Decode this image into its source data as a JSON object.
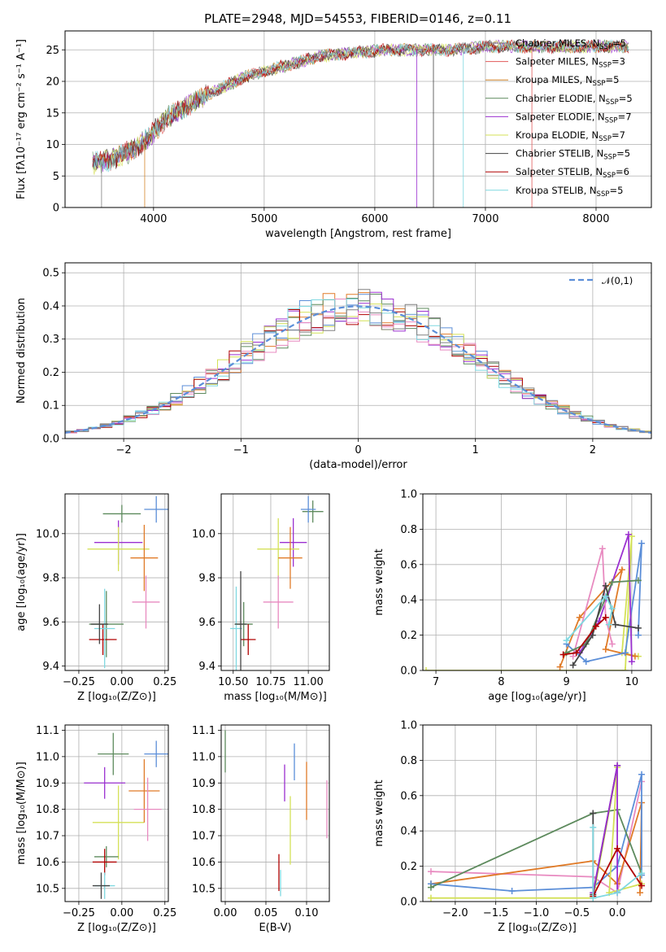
{
  "figure_title": "PLATE=2948, MJD=54553, FIBERID=0146, z=0.11",
  "legend": [
    {
      "label": "Chabrier MILES, N",
      "sub": "SSP",
      "value": "=5",
      "color": "#808080"
    },
    {
      "label": "Salpeter MILES, N",
      "sub": "SSP",
      "value": "=3",
      "color": "#e15a5a"
    },
    {
      "label": "Kroupa MILES, N",
      "sub": "SSP",
      "value": "=5",
      "color": "#d4862a"
    },
    {
      "label": "Chabrier ELODIE, N",
      "sub": "SSP",
      "value": "=5",
      "color": "#5d8a5d"
    },
    {
      "label": "Salpeter ELODIE, N",
      "sub": "SSP",
      "value": "=7",
      "color": "#9b30d0"
    },
    {
      "label": "Kroupa ELODIE, N",
      "sub": "SSP",
      "value": "=7",
      "color": "#d4e157"
    },
    {
      "label": "Chabrier STELIB, N",
      "sub": "SSP",
      "value": "=5",
      "color": "#444444"
    },
    {
      "label": "Salpeter STELIB, N",
      "sub": "SSP",
      "value": "=6",
      "color": "#b00000"
    },
    {
      "label": "Kroupa STELIB, N",
      "sub": "SSP",
      "value": "=5",
      "color": "#7fd8e0"
    }
  ],
  "chart_data": [
    {
      "id": "spectrum",
      "type": "line",
      "xlabel": "wavelength [Angstrom, rest frame]",
      "ylabel": "Flux [fλ10⁻¹⁷ erg cm⁻² s⁻¹ A⁻¹]",
      "xlim": [
        3200,
        8500
      ],
      "ylim": [
        0,
        28
      ],
      "xticks": [
        4000,
        5000,
        6000,
        7000,
        8000
      ],
      "yticks": [
        0,
        5,
        10,
        15,
        20,
        25
      ],
      "continuum": {
        "x": [
          3450,
          3600,
          3800,
          3950,
          4100,
          4300,
          4500,
          4800,
          5000,
          5200,
          5500,
          5800,
          6100,
          6400,
          6700,
          7000,
          7300,
          7600,
          7900,
          8200,
          8300
        ],
        "y": [
          7,
          7.5,
          9,
          11,
          14,
          16,
          18,
          20.5,
          21.5,
          22.5,
          24,
          24.5,
          25,
          25,
          25,
          25.5,
          25.5,
          25.5,
          25.5,
          25.5,
          25.5
        ]
      },
      "spikes": [
        3530,
        3920,
        6380,
        6530,
        6800,
        7420
      ]
    },
    {
      "id": "residuals",
      "type": "histogram",
      "xlabel": "(data-model)/error",
      "ylabel": "Normed distribution",
      "xlim": [
        -2.5,
        2.5
      ],
      "ylim": [
        0,
        0.53
      ],
      "xticks": [
        -2,
        -1,
        0,
        1,
        2
      ],
      "yticks": [
        0.0,
        0.1,
        0.2,
        0.3,
        0.4,
        0.5
      ],
      "bin_width": 0.1,
      "reference_curve": {
        "label": "𝒩(0,1)",
        "type": "gaussian",
        "mean": 0,
        "sigma": 1,
        "color": "#5b8ed8"
      }
    },
    {
      "id": "age_vs_Z",
      "type": "errorbar",
      "xlabel": "Z [log₁₀(Z/Z⊙)]",
      "ylabel": "age  [log₁₀(age/yr)]",
      "xlim": [
        -0.33,
        0.27
      ],
      "ylim": [
        9.38,
        10.18
      ],
      "xticks": [
        -0.25,
        0.0,
        0.25
      ],
      "yticks": [
        9.4,
        9.6,
        9.8,
        10.0
      ],
      "points": [
        {
          "x": 0.0,
          "y": 10.09,
          "xerr": 0.11,
          "yerr": 0.04,
          "color": "#5d8a5d"
        },
        {
          "x": 0.2,
          "y": 10.11,
          "xerr": 0.07,
          "yerr": 0.06,
          "color": "#5b8ed8"
        },
        {
          "x": -0.02,
          "y": 9.96,
          "xerr": 0.14,
          "yerr": 0.1,
          "color": "#9b30d0"
        },
        {
          "x": -0.02,
          "y": 9.93,
          "xerr": 0.18,
          "yerr": 0.1,
          "color": "#d4e157"
        },
        {
          "x": 0.13,
          "y": 9.89,
          "xerr": 0.08,
          "yerr": 0.15,
          "color": "#e07b28"
        },
        {
          "x": 0.14,
          "y": 9.69,
          "xerr": 0.08,
          "yerr": 0.12,
          "color": "#e88ac0"
        },
        {
          "x": -0.09,
          "y": 9.59,
          "xerr": 0.1,
          "yerr": 0.15,
          "color": "#5d8a5d"
        },
        {
          "x": -0.11,
          "y": 9.52,
          "xerr": 0.08,
          "yerr": 0.07,
          "color": "#b00000"
        },
        {
          "x": -0.1,
          "y": 9.57,
          "xerr": 0.06,
          "yerr": 0.18,
          "color": "#7fd8e0"
        },
        {
          "x": -0.13,
          "y": 9.59,
          "xerr": 0.05,
          "yerr": 0.09,
          "color": "#444444"
        }
      ]
    },
    {
      "id": "age_vs_mass",
      "type": "errorbar",
      "xlabel": "mass [log₁₀(M/M⊙)]",
      "ylabel": "",
      "xlim": [
        10.42,
        11.14
      ],
      "ylim": [
        9.38,
        10.18
      ],
      "xticks": [
        10.5,
        10.75,
        11.0
      ],
      "yticks": [
        9.4,
        9.6,
        9.8,
        10.0
      ],
      "points": [
        {
          "x": 11.03,
          "y": 10.1,
          "xerr": 0.07,
          "yerr": 0.05,
          "color": "#5d8a5d"
        },
        {
          "x": 11.0,
          "y": 10.11,
          "xerr": 0.05,
          "yerr": 0.06,
          "color": "#5b8ed8"
        },
        {
          "x": 10.9,
          "y": 9.96,
          "xerr": 0.09,
          "yerr": 0.11,
          "color": "#9b30d0"
        },
        {
          "x": 10.8,
          "y": 9.93,
          "xerr": 0.14,
          "yerr": 0.14,
          "color": "#d4e157"
        },
        {
          "x": 10.88,
          "y": 9.89,
          "xerr": 0.08,
          "yerr": 0.14,
          "color": "#e07b28"
        },
        {
          "x": 10.8,
          "y": 9.69,
          "xerr": 0.1,
          "yerr": 0.12,
          "color": "#e88ac0"
        },
        {
          "x": 10.57,
          "y": 9.59,
          "xerr": 0.06,
          "yerr": 0.1,
          "color": "#5d8a5d"
        },
        {
          "x": 10.6,
          "y": 9.52,
          "xerr": 0.05,
          "yerr": 0.07,
          "color": "#b00000"
        },
        {
          "x": 10.52,
          "y": 9.57,
          "xerr": 0.04,
          "yerr": 0.19,
          "color": "#7fd8e0"
        },
        {
          "x": 10.55,
          "y": 9.59,
          "xerr": 0.04,
          "yerr": 0.24,
          "color": "#444444"
        }
      ]
    },
    {
      "id": "mass_weight_vs_age",
      "type": "line",
      "xlabel": "age  [log₁₀(age/yr)]",
      "ylabel": "mass weight",
      "xlim": [
        6.8,
        10.3
      ],
      "ylim": [
        0,
        1
      ],
      "xticks": [
        7,
        8,
        9,
        10
      ],
      "yticks": [
        0.0,
        0.2,
        0.4,
        0.6,
        0.8,
        1.0
      ],
      "series": [
        {
          "color": "#d4e157",
          "x": [
            6.85,
            9.9,
            10.0,
            9.85,
            10.1
          ],
          "y": [
            0.0,
            0.0,
            0.76,
            0.1,
            0.08
          ]
        },
        {
          "color": "#e07b28",
          "x": [
            8.9,
            9.2,
            9.85,
            9.6,
            10.05
          ],
          "y": [
            0.02,
            0.3,
            0.57,
            0.12,
            0.08
          ]
        },
        {
          "color": "#5b8ed8",
          "x": [
            9.0,
            9.3,
            9.9,
            10.15,
            10.1
          ],
          "y": [
            0.15,
            0.05,
            0.1,
            0.72,
            0.2
          ]
        },
        {
          "color": "#9b30d0",
          "x": [
            9.2,
            9.5,
            9.95,
            10.0
          ],
          "y": [
            0.1,
            0.28,
            0.77,
            0.05
          ]
        },
        {
          "color": "#e88ac0",
          "x": [
            9.1,
            9.55,
            9.6,
            9.7
          ],
          "y": [
            0.08,
            0.69,
            0.3,
            0.15
          ]
        },
        {
          "color": "#5d8a5d",
          "x": [
            9.0,
            9.3,
            9.7,
            10.1
          ],
          "y": [
            0.1,
            0.15,
            0.5,
            0.51
          ]
        },
        {
          "color": "#444444",
          "x": [
            9.1,
            9.4,
            9.6,
            9.75,
            10.1
          ],
          "y": [
            0.03,
            0.2,
            0.48,
            0.26,
            0.24
          ]
        },
        {
          "color": "#b00000",
          "x": [
            8.95,
            9.15,
            9.45,
            9.6
          ],
          "y": [
            0.09,
            0.1,
            0.25,
            0.3
          ]
        },
        {
          "color": "#7fd8e0",
          "x": [
            9.0,
            9.6,
            9.7,
            9.65
          ],
          "y": [
            0.17,
            0.42,
            0.35,
            0.26
          ]
        }
      ]
    },
    {
      "id": "mass_vs_Z",
      "type": "errorbar",
      "xlabel": "Z [log₁₀(Z/Z⊙)]",
      "ylabel": "mass [log₁₀(M/M⊙)]",
      "xlim": [
        -0.33,
        0.27
      ],
      "ylim": [
        10.45,
        11.12
      ],
      "xticks": [
        -0.25,
        0.0,
        0.25
      ],
      "yticks": [
        10.5,
        10.6,
        10.7,
        10.8,
        10.9,
        11.0,
        11.1
      ],
      "points": [
        {
          "x": -0.05,
          "y": 11.01,
          "xerr": 0.09,
          "yerr": 0.08,
          "color": "#5d8a5d"
        },
        {
          "x": 0.2,
          "y": 11.01,
          "xerr": 0.07,
          "yerr": 0.05,
          "color": "#5b8ed8"
        },
        {
          "x": -0.1,
          "y": 10.9,
          "xerr": 0.12,
          "yerr": 0.06,
          "color": "#9b30d0"
        },
        {
          "x": -0.02,
          "y": 10.75,
          "xerr": 0.15,
          "yerr": 0.14,
          "color": "#d4e157"
        },
        {
          "x": 0.13,
          "y": 10.87,
          "xerr": 0.09,
          "yerr": 0.12,
          "color": "#e07b28"
        },
        {
          "x": 0.15,
          "y": 10.8,
          "xerr": 0.08,
          "yerr": 0.12,
          "color": "#e88ac0"
        },
        {
          "x": -0.09,
          "y": 10.62,
          "xerr": 0.07,
          "yerr": 0.04,
          "color": "#5d8a5d"
        },
        {
          "x": -0.1,
          "y": 10.6,
          "xerr": 0.07,
          "yerr": 0.05,
          "color": "#b00000"
        },
        {
          "x": -0.1,
          "y": 10.51,
          "xerr": 0.06,
          "yerr": 0.05,
          "color": "#7fd8e0"
        },
        {
          "x": -0.12,
          "y": 10.51,
          "xerr": 0.05,
          "yerr": 0.05,
          "color": "#444444"
        }
      ]
    },
    {
      "id": "mass_vs_EBV",
      "type": "errorbar",
      "xlabel": "E(B-V)",
      "ylabel": "",
      "xlim": [
        -0.005,
        0.128
      ],
      "ylim": [
        10.45,
        11.12
      ],
      "xticks": [
        0.0,
        0.05,
        0.1
      ],
      "yticks": [
        10.5,
        10.6,
        10.7,
        10.8,
        10.9,
        11.0,
        11.1
      ],
      "points": [
        {
          "x": 0.0,
          "y": 11.02,
          "xerr": 0,
          "yerr": 0.08,
          "color": "#5d8a5d"
        },
        {
          "x": 0.085,
          "y": 10.98,
          "xerr": 0,
          "yerr": 0.07,
          "color": "#5b8ed8"
        },
        {
          "x": 0.073,
          "y": 10.9,
          "xerr": 0,
          "yerr": 0.07,
          "color": "#9b30d0"
        },
        {
          "x": 0.08,
          "y": 10.72,
          "xerr": 0,
          "yerr": 0.13,
          "color": "#d4e157"
        },
        {
          "x": 0.1,
          "y": 10.87,
          "xerr": 0,
          "yerr": 0.11,
          "color": "#e07b28"
        },
        {
          "x": 0.125,
          "y": 10.8,
          "xerr": 0,
          "yerr": 0.11,
          "color": "#e88ac0"
        },
        {
          "x": 0.066,
          "y": 10.56,
          "xerr": 0,
          "yerr": 0.07,
          "color": "#b00000"
        },
        {
          "x": 0.068,
          "y": 10.52,
          "xerr": 0,
          "yerr": 0.05,
          "color": "#7fd8e0"
        }
      ]
    },
    {
      "id": "mass_weight_vs_Z",
      "type": "line",
      "xlabel": "Z [log₁₀(Z/Z⊙)]",
      "ylabel": "mass weight",
      "xlim": [
        -2.4,
        0.42
      ],
      "ylim": [
        0,
        1
      ],
      "xticks": [
        -2.0,
        -1.5,
        -1.0,
        -0.5,
        0.0
      ],
      "yticks": [
        0.0,
        0.2,
        0.4,
        0.6,
        0.8,
        1.0
      ],
      "series": [
        {
          "color": "#e88ac0",
          "x": [
            -2.3,
            -0.3,
            0.0,
            0.3
          ],
          "y": [
            0.17,
            0.14,
            0.05,
            0.68
          ]
        },
        {
          "color": "#e07b28",
          "x": [
            -2.3,
            -0.3,
            0.0,
            0.3,
            0.28
          ],
          "y": [
            0.1,
            0.23,
            0.1,
            0.56,
            0.05
          ]
        },
        {
          "color": "#5b8ed8",
          "x": [
            -2.3,
            -1.3,
            -0.3,
            0.0,
            0.3,
            0.3
          ],
          "y": [
            0.1,
            0.06,
            0.08,
            0.2,
            0.72,
            0.15
          ]
        },
        {
          "color": "#5d8a5d",
          "x": [
            -2.3,
            -0.3,
            0.0,
            0.3
          ],
          "y": [
            0.08,
            0.5,
            0.52,
            0.16
          ]
        },
        {
          "color": "#d4e157",
          "x": [
            -2.3,
            -0.3,
            0.0,
            -0.1,
            0.3
          ],
          "y": [
            0.02,
            0.02,
            0.76,
            0.05,
            0.1
          ]
        },
        {
          "color": "#444444",
          "x": [
            -0.3,
            -0.3,
            0.0
          ],
          "y": [
            0.5,
            0.04,
            0.77
          ]
        },
        {
          "color": "#9b30d0",
          "x": [
            -0.3,
            0.0,
            0.0
          ],
          "y": [
            0.05,
            0.77,
            0.05
          ]
        },
        {
          "color": "#b00000",
          "x": [
            -0.3,
            0.0,
            0.3
          ],
          "y": [
            0.03,
            0.3,
            0.09
          ]
        },
        {
          "color": "#7fd8e0",
          "x": [
            -0.3,
            -0.3,
            0.0,
            0.3
          ],
          "y": [
            0.42,
            0.02,
            0.05,
            0.16
          ]
        }
      ]
    }
  ]
}
